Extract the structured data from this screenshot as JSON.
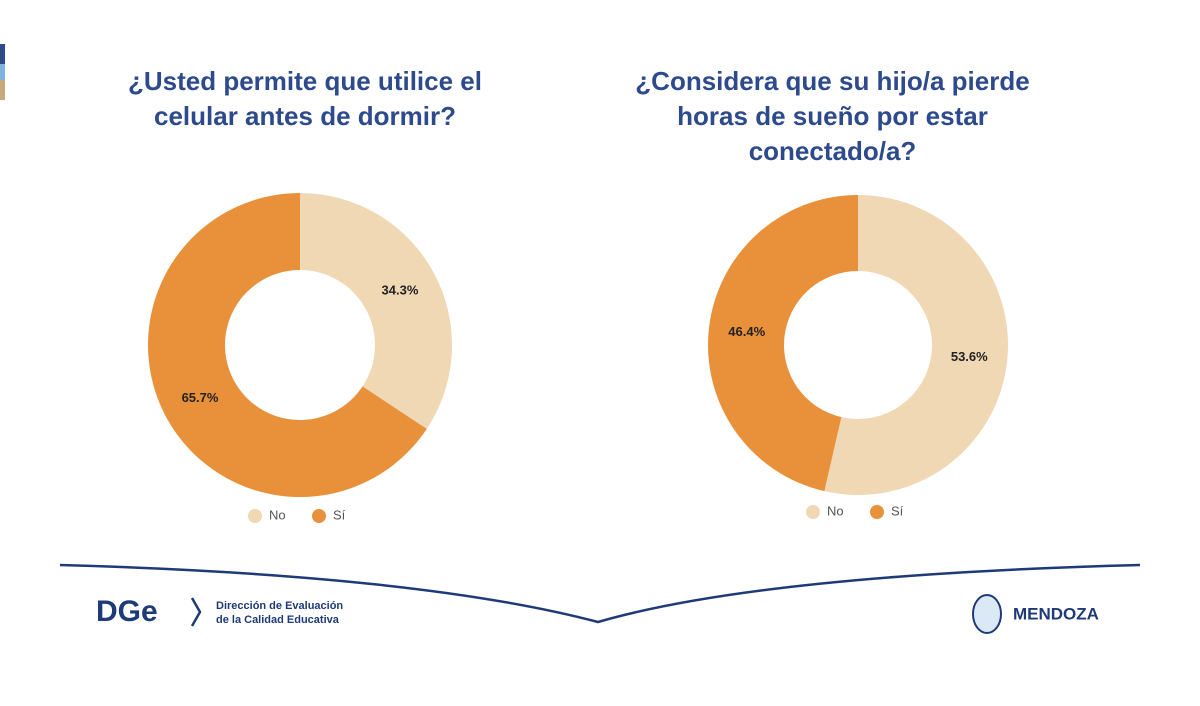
{
  "chart_data": [
    {
      "type": "donut",
      "title": "¿Usted permite que utilice el celular antes de dormir?",
      "categories": [
        "No",
        "Sí"
      ],
      "values": [
        34.3,
        65.7
      ],
      "value_labels": [
        "34.3%",
        "65.7%"
      ],
      "colors": [
        "#efd8b3",
        "#e8913a"
      ],
      "legend": "bottom"
    },
    {
      "type": "donut",
      "title": "¿Considera que su hijo/a pierde horas de sueño por estar conectado/a?",
      "categories": [
        "No",
        "Sí"
      ],
      "values": [
        53.6,
        46.4
      ],
      "value_labels": [
        "53.6%",
        "46.4%"
      ],
      "colors": [
        "#efd8b3",
        "#e8913a"
      ],
      "legend": "bottom"
    }
  ],
  "footer": {
    "logo": "DGe",
    "org_line1": "Dirección de Evaluación",
    "org_line2": "de la Calidad Educativa",
    "province": "MENDOZA"
  }
}
